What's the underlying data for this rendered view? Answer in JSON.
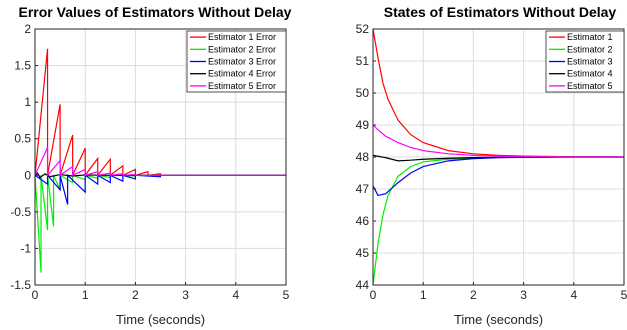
{
  "chart_data": [
    {
      "type": "line",
      "title": "Error Values of Estimators Without Delay",
      "xlabel": "Time (seconds)",
      "ylabel": "",
      "xlim": [
        0,
        5
      ],
      "ylim": [
        -1.5,
        2
      ],
      "xticks": [
        "0",
        "1",
        "2",
        "3",
        "4",
        "5"
      ],
      "yticks": [
        "-1.5",
        "-1",
        "-0.5",
        "0",
        "0.5",
        "1",
        "1.5",
        "2"
      ],
      "grid": true,
      "legend": "top-right",
      "series": [
        {
          "name": "Estimator 1 Error",
          "color": "#ff0000",
          "x": [
            0,
            0.25,
            0.25,
            0.5,
            0.5,
            0.75,
            0.75,
            1.0,
            1.0,
            1.25,
            1.25,
            1.5,
            1.5,
            1.75,
            1.75,
            2.0,
            2.0,
            2.25,
            2.25,
            2.5,
            2.5,
            5.0
          ],
          "y": [
            0,
            1.73,
            0,
            0.97,
            0,
            0.55,
            0,
            0.37,
            0,
            0.23,
            0,
            0.22,
            0,
            0.13,
            0,
            0.08,
            0,
            0.05,
            0,
            0.02,
            0,
            0
          ]
        },
        {
          "name": "Estimator 2 Error",
          "color": "#00ee00",
          "x": [
            0,
            0.12,
            0.12,
            0.25,
            0.25,
            0.37,
            0.37,
            0.5,
            0.5,
            0.75,
            0.75,
            1.0,
            1.0,
            1.25,
            1.25,
            1.5,
            1.5,
            2.0,
            2.0,
            5.0
          ],
          "y": [
            0,
            -1.33,
            0,
            -0.75,
            0,
            -0.7,
            0,
            -0.2,
            0,
            -0.1,
            0,
            -0.06,
            0,
            -0.04,
            0,
            -0.03,
            0,
            -0.01,
            0,
            0
          ]
        },
        {
          "name": "Estimator 3 Error",
          "color": "#0000ff",
          "x": [
            0,
            0.25,
            0.25,
            0.5,
            0.5,
            0.65,
            0.65,
            1.0,
            1.0,
            1.25,
            1.25,
            1.5,
            1.5,
            1.75,
            1.75,
            2.0,
            2.0,
            2.5,
            2.5,
            5.0
          ],
          "y": [
            0,
            -0.12,
            0,
            -0.2,
            0,
            -0.4,
            0,
            -0.23,
            0,
            -0.12,
            0,
            -0.1,
            0,
            -0.08,
            0,
            -0.05,
            0,
            -0.02,
            0,
            0
          ]
        },
        {
          "name": "Estimator 4 Error",
          "color": "#000000",
          "x": [
            0,
            0.05,
            0.1,
            0.2,
            0.3,
            0.5,
            0.75,
            1.0,
            1.5,
            2.0,
            5.0
          ],
          "y": [
            0,
            0.03,
            -0.03,
            0.02,
            -0.02,
            0.01,
            -0.01,
            0.005,
            0,
            0,
            0
          ]
        },
        {
          "name": "Estimator 5 Error",
          "color": "#ff00ff",
          "x": [
            0,
            0.25,
            0.25,
            0.5,
            0.5,
            0.75,
            0.75,
            1.0,
            1.0,
            1.25,
            1.25,
            1.5,
            1.5,
            1.75,
            1.75,
            2.0,
            2.0,
            5.0
          ],
          "y": [
            0,
            0.38,
            0,
            0.2,
            0,
            0.12,
            0,
            0.08,
            0,
            0.05,
            0,
            0.03,
            0,
            0.02,
            0,
            0.01,
            0,
            0
          ]
        }
      ]
    },
    {
      "type": "line",
      "title": "States of Estimators Without Delay",
      "xlabel": "Time (seconds)",
      "ylabel": "",
      "xlim": [
        0,
        5
      ],
      "ylim": [
        44,
        52
      ],
      "xticks": [
        "0",
        "1",
        "2",
        "3",
        "4",
        "5"
      ],
      "yticks": [
        "44",
        "45",
        "46",
        "47",
        "48",
        "49",
        "50",
        "51",
        "52"
      ],
      "grid": true,
      "legend": "top-right",
      "series": [
        {
          "name": "Estimator 1",
          "color": "#ff0000",
          "x": [
            0,
            0.1,
            0.2,
            0.3,
            0.5,
            0.75,
            1.0,
            1.5,
            2.0,
            2.5,
            3.0,
            4.0,
            5.0
          ],
          "y": [
            52,
            51.1,
            50.3,
            49.8,
            49.15,
            48.7,
            48.45,
            48.2,
            48.1,
            48.05,
            48.03,
            48.01,
            48.0
          ]
        },
        {
          "name": "Estimator 2",
          "color": "#00ee00",
          "x": [
            0,
            0.1,
            0.2,
            0.3,
            0.5,
            0.75,
            1.0,
            1.5,
            2.0,
            2.5,
            3.0,
            4.0,
            5.0
          ],
          "y": [
            44,
            45.3,
            46.2,
            46.8,
            47.4,
            47.7,
            47.85,
            47.93,
            47.97,
            47.99,
            48.0,
            48.0,
            48.0
          ]
        },
        {
          "name": "Estimator 3",
          "color": "#0000ff",
          "x": [
            0,
            0.1,
            0.25,
            0.5,
            0.75,
            1.0,
            1.5,
            2.0,
            2.5,
            3.0,
            4.0,
            5.0
          ],
          "y": [
            47.1,
            46.8,
            46.85,
            47.2,
            47.5,
            47.7,
            47.88,
            47.95,
            47.98,
            47.99,
            48.0,
            48.0
          ]
        },
        {
          "name": "Estimator 4",
          "color": "#000000",
          "x": [
            0,
            0.25,
            0.5,
            0.75,
            1.0,
            1.5,
            2.0,
            3.0,
            4.0,
            5.0
          ],
          "y": [
            48.05,
            47.98,
            47.88,
            47.9,
            47.93,
            47.96,
            47.98,
            47.99,
            48.0,
            48.0
          ]
        },
        {
          "name": "Estimator 5",
          "color": "#ff00ff",
          "x": [
            0,
            0.1,
            0.25,
            0.5,
            0.75,
            1.0,
            1.5,
            2.0,
            2.5,
            3.0,
            4.0,
            5.0
          ],
          "y": [
            49.0,
            48.85,
            48.65,
            48.45,
            48.3,
            48.2,
            48.1,
            48.05,
            48.02,
            48.01,
            48.0,
            48.0
          ]
        }
      ]
    }
  ]
}
